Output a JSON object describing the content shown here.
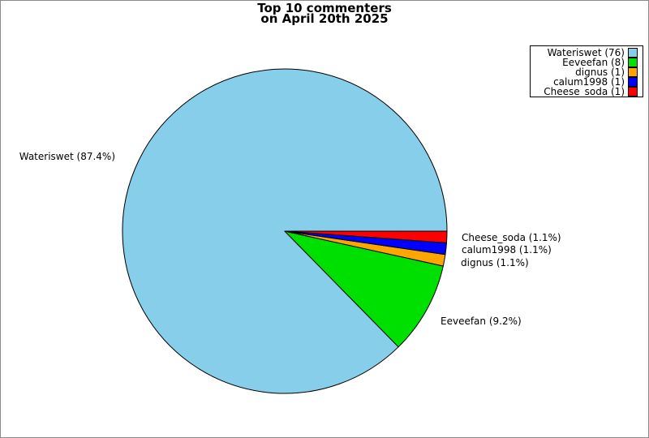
{
  "title": {
    "line1": "Top 10 commenters",
    "line2": "on April 20th 2025"
  },
  "chart_data": {
    "type": "pie",
    "title": "Top 10 commenters on April 20th 2025",
    "total": 87,
    "start_angle_deg": 0,
    "direction": "counterclockwise",
    "legend_position": "upper-right",
    "edge_color": "#000000",
    "background": "#FFFFFF",
    "series": [
      {
        "name": "Wateriswet",
        "value": 76,
        "percent": 87.4,
        "color": "#87CEEB",
        "legend_label": "Wateriswet (76)",
        "slice_label": "Wateriswet (87.4%)"
      },
      {
        "name": "Eeveefan",
        "value": 8,
        "percent": 9.2,
        "color": "#00E000",
        "legend_label": "Eeveefan (8)",
        "slice_label": "Eeveefan (9.2%)"
      },
      {
        "name": "dignus",
        "value": 1,
        "percent": 1.1,
        "color": "#FFA500",
        "legend_label": "dignus (1)",
        "slice_label": "dignus (1.1%)"
      },
      {
        "name": "calum1998",
        "value": 1,
        "percent": 1.1,
        "color": "#0000FF",
        "legend_label": "calum1998 (1)",
        "slice_label": "calum1998 (1.1%)"
      },
      {
        "name": "Cheese_soda",
        "value": 1,
        "percent": 1.1,
        "color": "#FF0000",
        "legend_label": "Cheese_soda (1)",
        "slice_label": "Cheese_soda (1.1%)"
      }
    ]
  }
}
